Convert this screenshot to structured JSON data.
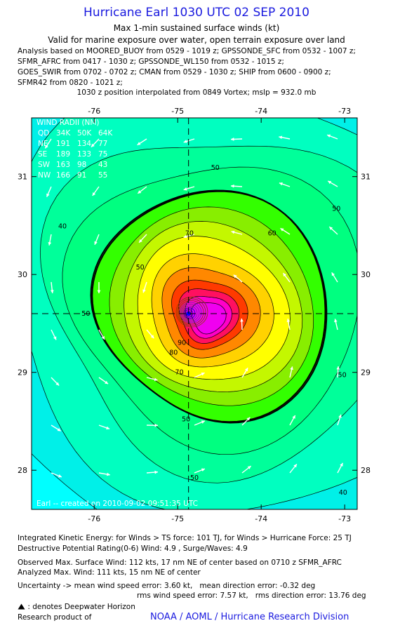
{
  "header": {
    "title": "Hurricane Earl 1030 UTC 02 SEP 2010",
    "subtitle1": "Max 1-min sustained surface winds (kt)",
    "subtitle2": "Valid for marine exposure over water, open terrain exposure over land",
    "analysis_lines": [
      "Analysis based on MOORED_BUOY from 0529 - 1019 z; GPSSONDE_SFC from 0532 - 1007 z;",
      "SFMR_AFRC from 0417 - 1030 z; GPSSONDE_WL150 from 0532 - 1015 z;",
      "GOES_SWIR from 0702 - 0702 z; CMAN from 0529 - 1030 z; SHIP from 0600 - 0900 z;",
      "SFMR42 from 0820 - 1021 z;"
    ],
    "position_note": "1030 z position interpolated from 0849 Vortex; mslp = 932.0 mb"
  },
  "chart_data": {
    "type": "contour",
    "x_ticks": [
      -76,
      -75,
      -74,
      -73
    ],
    "y_ticks": [
      28,
      29,
      30,
      31
    ],
    "x_tick_labels": [
      "-76",
      "-75",
      "-74",
      "-73"
    ],
    "y_tick_labels": [
      "28",
      "29",
      "30",
      "31"
    ],
    "xlim": [
      -76.75,
      -72.85
    ],
    "ylim": [
      27.6,
      31.6
    ],
    "center": {
      "lon": -74.87,
      "lat": 29.6
    },
    "contour_levels": [
      20,
      25,
      30,
      35,
      40,
      45,
      50,
      55,
      60,
      65,
      70,
      75,
      80,
      85,
      90,
      95,
      100,
      105,
      110
    ],
    "contour_labels": [
      {
        "text": "50",
        "lon": -74.55,
        "lat": 31.07
      },
      {
        "text": "50",
        "lon": -73.1,
        "lat": 30.65
      },
      {
        "text": "40",
        "lon": -76.38,
        "lat": 30.47
      },
      {
        "text": "60",
        "lon": -73.87,
        "lat": 30.4
      },
      {
        "text": "70",
        "lon": -74.86,
        "lat": 30.4
      },
      {
        "text": "50",
        "lon": -75.45,
        "lat": 30.05
      },
      {
        "text": "50",
        "lon": -76.1,
        "lat": 29.58
      },
      {
        "text": "90",
        "lon": -74.95,
        "lat": 29.28
      },
      {
        "text": "80",
        "lon": -75.05,
        "lat": 29.18
      },
      {
        "text": "70",
        "lon": -74.98,
        "lat": 28.98
      },
      {
        "text": "50",
        "lon": -73.03,
        "lat": 28.95
      },
      {
        "text": "50",
        "lon": -74.9,
        "lat": 28.5
      },
      {
        "text": "50",
        "lon": -74.8,
        "lat": 27.9
      },
      {
        "text": "40",
        "lon": -73.02,
        "lat": 27.75
      }
    ],
    "wind_radii": {
      "title": "WIND RADII (NM)",
      "header": [
        "QD",
        "34K",
        "50K",
        "64K"
      ],
      "rows": [
        [
          "NE",
          "191",
          "134",
          "77"
        ],
        [
          "SE",
          "189",
          "133",
          "75"
        ],
        [
          "SW",
          "163",
          "98",
          "43"
        ],
        [
          "NW",
          "166",
          "91",
          "55"
        ]
      ]
    },
    "credit": "Earl -- created on 2010-09-02 09:51:35 UTC"
  },
  "footer": {
    "ike": "Integrated Kinetic Energy:  for Winds > TS force: 101 TJ,  for Winds > Hurricane Force: 25 TJ",
    "dpr": "Destructive Potential Rating(0-6)   Wind: 4.9 , Surge/Waves: 4.9",
    "obs_max": "Observed Max. Surface Wind: 112 kts, 17 nm NE of center based on 0710 z SFMR_AFRC",
    "analyzed_max": "Analyzed Max. Wind: 111 kts, 15 nm NE of center",
    "uncertainty_a": "Uncertainty -> mean wind speed error: 3.60 kt,",
    "uncertainty_b": "mean direction error:  -0.32 deg",
    "rms_a": "rms wind speed error: 7.57 kt,",
    "rms_b": "rms direction error: 13.76 deg",
    "deepwater": ": denotes Deepwater Horizon",
    "research": "Research product of",
    "org": "NOAA / AOML / Hurricane Research Division"
  }
}
